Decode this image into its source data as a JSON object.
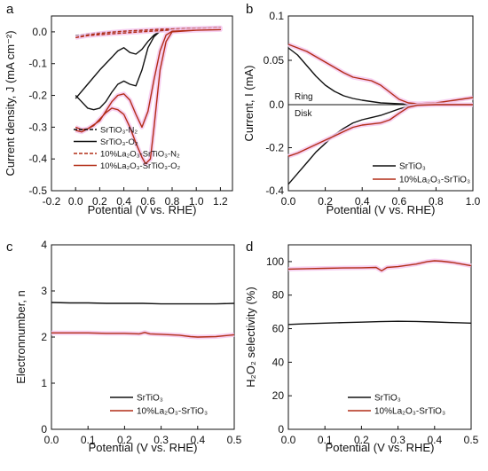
{
  "colors": {
    "black": "#111111",
    "red": "#b22d16",
    "glow": "#f6c8ee"
  },
  "chart_data": [
    {
      "id": "a",
      "panel_label": "a",
      "type": "line",
      "xlabel": "Potential (V vs. RHE)",
      "ylabel": "Current density, J (mA cm⁻²)",
      "xlim": [
        -0.2,
        1.3
      ],
      "ylim": [
        -0.5,
        0.05
      ],
      "xticks": [
        -0.2,
        0.0,
        0.2,
        0.4,
        0.6,
        0.8,
        1.0,
        1.2
      ],
      "yticks": [
        0.0,
        -0.1,
        -0.2,
        -0.3,
        -0.4,
        -0.5
      ],
      "xtick_labels": [
        "-0.2",
        "0.0",
        "0.2",
        "0.4",
        "0.6",
        "0.8",
        "1.0",
        "1.2"
      ],
      "ytick_labels": [
        "0.0",
        "-0.1",
        "-0.2",
        "-0.3",
        "-0.4",
        "-0.5"
      ],
      "legend_position": "bottom-left",
      "series": [
        {
          "name": "SrTiO₃-N₂",
          "color": "#111111",
          "dash": "4,2",
          "x": [
            0.0,
            0.1,
            0.2,
            0.3,
            0.4,
            0.5,
            0.6,
            0.7,
            0.8,
            0.9,
            1.0,
            1.1,
            1.2,
            1.1,
            0.9,
            0.7,
            0.5,
            0.3,
            0.1,
            0.0
          ],
          "y": [
            -0.012,
            -0.006,
            -0.002,
            0.001,
            0.003,
            0.005,
            0.007,
            0.009,
            0.01,
            0.011,
            0.012,
            0.013,
            0.014,
            0.012,
            0.009,
            0.005,
            0.0,
            -0.004,
            -0.009,
            -0.012
          ]
        },
        {
          "name": "SrTiO₃-O₂",
          "color": "#111111",
          "x": [
            0.0,
            0.05,
            0.1,
            0.15,
            0.2,
            0.25,
            0.3,
            0.35,
            0.4,
            0.45,
            0.5,
            0.55,
            0.6,
            0.65,
            0.7,
            0.8,
            1.0,
            1.2,
            1.0,
            0.8,
            0.7,
            0.65,
            0.6,
            0.55,
            0.5,
            0.45,
            0.4,
            0.35,
            0.3,
            0.2,
            0.1,
            0.0
          ],
          "y": [
            -0.2,
            -0.22,
            -0.24,
            -0.245,
            -0.24,
            -0.22,
            -0.19,
            -0.165,
            -0.155,
            -0.165,
            -0.17,
            -0.12,
            -0.05,
            -0.015,
            0.002,
            0.008,
            0.012,
            0.014,
            0.012,
            0.008,
            0.002,
            -0.01,
            -0.03,
            -0.055,
            -0.07,
            -0.065,
            -0.05,
            -0.06,
            -0.08,
            -0.12,
            -0.165,
            -0.21
          ]
        },
        {
          "name": "10%La₂O₃-SrTiO₃-N₂",
          "color": "#b22d16",
          "dash": "4,2",
          "x": [
            0.0,
            0.1,
            0.2,
            0.3,
            0.4,
            0.5,
            0.6,
            0.7,
            0.8,
            0.9,
            1.0,
            1.1,
            1.2,
            1.1,
            0.9,
            0.7,
            0.5,
            0.3,
            0.1,
            0.0
          ],
          "y": [
            -0.018,
            -0.01,
            -0.005,
            -0.001,
            0.002,
            0.004,
            0.006,
            0.008,
            0.009,
            0.01,
            0.011,
            0.012,
            0.013,
            0.011,
            0.008,
            0.004,
            -0.001,
            -0.006,
            -0.012,
            -0.018
          ]
        },
        {
          "name": "10%La₂O₃-SrTiO₃-O₂",
          "color": "#b22d16",
          "x": [
            0.0,
            0.05,
            0.1,
            0.15,
            0.2,
            0.25,
            0.3,
            0.35,
            0.4,
            0.45,
            0.5,
            0.55,
            0.58,
            0.62,
            0.65,
            0.7,
            0.75,
            0.8,
            1.0,
            1.2,
            1.0,
            0.8,
            0.75,
            0.7,
            0.65,
            0.6,
            0.55,
            0.5,
            0.45,
            0.4,
            0.35,
            0.3,
            0.25,
            0.2,
            0.1,
            0.05,
            0.0
          ],
          "y": [
            -0.3,
            -0.308,
            -0.305,
            -0.295,
            -0.275,
            -0.255,
            -0.24,
            -0.245,
            -0.26,
            -0.3,
            -0.35,
            -0.395,
            -0.415,
            -0.4,
            -0.3,
            -0.12,
            -0.03,
            0.0,
            0.005,
            0.007,
            0.005,
            0.002,
            -0.01,
            -0.06,
            -0.15,
            -0.25,
            -0.3,
            -0.26,
            -0.215,
            -0.195,
            -0.2,
            -0.22,
            -0.25,
            -0.28,
            -0.305,
            -0.315,
            -0.31
          ]
        }
      ]
    },
    {
      "id": "b",
      "panel_label": "b",
      "type": "line",
      "xlabel": "Potential (V vs. RHE)",
      "ylabel": "Current, I (mA)",
      "xlim": [
        0.0,
        1.0
      ],
      "ylim": [
        -0.4,
        0.1
      ],
      "xticks": [
        0.0,
        0.2,
        0.4,
        0.6,
        0.8,
        1.0
      ],
      "yticks": [
        0.1,
        0.05,
        0.0,
        -0.2,
        -0.4
      ],
      "xtick_labels": [
        "0.0",
        "0.2",
        "0.4",
        "0.6",
        "0.8",
        "1.0"
      ],
      "ytick_labels": [
        "0.1",
        "0.05",
        "0.0",
        "-0.2",
        "-0.4"
      ],
      "split_axis": {
        "top": [
          0.0,
          0.1
        ],
        "bottom": [
          -0.4,
          0.0
        ]
      },
      "region_labels": {
        "top": "Ring",
        "bottom": "Disk"
      },
      "legend_position": "bottom-right",
      "series": [
        {
          "name": "SrTiO₃",
          "color": "#111111",
          "part": "ring",
          "x": [
            0.0,
            0.05,
            0.1,
            0.15,
            0.2,
            0.25,
            0.3,
            0.35,
            0.4,
            0.5,
            0.6,
            0.7,
            0.8,
            0.9,
            1.0
          ],
          "y": [
            0.064,
            0.056,
            0.044,
            0.032,
            0.022,
            0.015,
            0.01,
            0.007,
            0.005,
            0.002,
            0.001,
            0.0,
            0.0,
            0.0,
            0.0
          ]
        },
        {
          "name": "10%La₂O₃-SrTiO₃",
          "color": "#b22d16",
          "part": "ring",
          "x": [
            0.0,
            0.05,
            0.1,
            0.15,
            0.2,
            0.25,
            0.3,
            0.35,
            0.4,
            0.45,
            0.5,
            0.55,
            0.6,
            0.65,
            0.7,
            0.8,
            0.9,
            1.0
          ],
          "y": [
            0.068,
            0.064,
            0.06,
            0.054,
            0.048,
            0.042,
            0.036,
            0.031,
            0.029,
            0.027,
            0.022,
            0.014,
            0.006,
            0.002,
            0.001,
            0.002,
            0.005,
            0.008
          ]
        },
        {
          "name": "SrTiO₃",
          "color": "#111111",
          "part": "disk",
          "x": [
            0.0,
            0.05,
            0.1,
            0.15,
            0.2,
            0.25,
            0.3,
            0.35,
            0.4,
            0.45,
            0.5,
            0.55,
            0.6,
            0.65,
            0.7,
            0.8,
            0.9,
            1.0
          ],
          "y": [
            -0.37,
            -0.32,
            -0.27,
            -0.22,
            -0.18,
            -0.14,
            -0.11,
            -0.085,
            -0.07,
            -0.06,
            -0.05,
            -0.035,
            -0.02,
            -0.008,
            -0.002,
            0.0,
            0.0,
            0.0
          ]
        },
        {
          "name": "10%La₂O₃-SrTiO₃",
          "color": "#b22d16",
          "part": "disk",
          "x": [
            0.0,
            0.05,
            0.1,
            0.15,
            0.2,
            0.25,
            0.3,
            0.35,
            0.4,
            0.45,
            0.5,
            0.55,
            0.6,
            0.65,
            0.7,
            0.8,
            0.9,
            1.0
          ],
          "y": [
            -0.24,
            -0.225,
            -0.205,
            -0.185,
            -0.165,
            -0.145,
            -0.125,
            -0.105,
            -0.095,
            -0.09,
            -0.085,
            -0.07,
            -0.04,
            -0.012,
            -0.003,
            0.0,
            0.0,
            0.0
          ]
        }
      ]
    },
    {
      "id": "c",
      "panel_label": "c",
      "type": "line",
      "xlabel": "Potential (V vs. RHE)",
      "ylabel": "Electronnumber, n",
      "xlim": [
        0.0,
        0.5
      ],
      "ylim": [
        0,
        4
      ],
      "xticks": [
        0.0,
        0.1,
        0.2,
        0.3,
        0.4,
        0.5
      ],
      "yticks": [
        0,
        1,
        2,
        3,
        4
      ],
      "xtick_labels": [
        "0.0",
        "0.1",
        "0.2",
        "0.3",
        "0.4",
        "0.5"
      ],
      "ytick_labels": [
        "0",
        "1",
        "2",
        "3",
        "4"
      ],
      "legend_position": "bottom-right",
      "series": [
        {
          "name": "SrTiO₃",
          "color": "#111111",
          "x": [
            0.0,
            0.05,
            0.1,
            0.15,
            0.2,
            0.25,
            0.3,
            0.35,
            0.4,
            0.45,
            0.5
          ],
          "y": [
            2.75,
            2.74,
            2.74,
            2.73,
            2.73,
            2.73,
            2.72,
            2.72,
            2.72,
            2.72,
            2.73
          ]
        },
        {
          "name": "10%La₂O₃-SrTiO₃",
          "color": "#b22d16",
          "x": [
            0.0,
            0.05,
            0.1,
            0.15,
            0.2,
            0.24,
            0.255,
            0.27,
            0.3,
            0.35,
            0.38,
            0.4,
            0.45,
            0.5
          ],
          "y": [
            2.09,
            2.09,
            2.09,
            2.08,
            2.08,
            2.07,
            2.1,
            2.07,
            2.06,
            2.04,
            2.01,
            2.0,
            2.01,
            2.05
          ]
        }
      ]
    },
    {
      "id": "d",
      "panel_label": "d",
      "type": "line",
      "xlabel": "Potential (V vs. RHE)",
      "ylabel": "H₂O₂ selectivity (%)",
      "xlim": [
        0.0,
        0.5
      ],
      "ylim": [
        0,
        110
      ],
      "xticks": [
        0.0,
        0.1,
        0.2,
        0.3,
        0.4,
        0.5
      ],
      "yticks": [
        0,
        20,
        40,
        60,
        80,
        100
      ],
      "xtick_labels": [
        "0.0",
        "0.1",
        "0.2",
        "0.3",
        "0.4",
        "0.5"
      ],
      "ytick_labels": [
        "0",
        "20",
        "40",
        "60",
        "80",
        "100"
      ],
      "legend_position": "bottom-right",
      "series": [
        {
          "name": "SrTiO₃",
          "color": "#111111",
          "x": [
            0.0,
            0.05,
            0.1,
            0.15,
            0.2,
            0.25,
            0.3,
            0.35,
            0.4,
            0.45,
            0.5
          ],
          "y": [
            62.5,
            63.0,
            63.3,
            63.6,
            63.9,
            64.2,
            64.4,
            64.3,
            64.0,
            63.6,
            63.3
          ]
        },
        {
          "name": "10%La₂O₃-SrTiO₃",
          "color": "#b22d16",
          "x": [
            0.0,
            0.05,
            0.1,
            0.15,
            0.2,
            0.24,
            0.255,
            0.27,
            0.3,
            0.35,
            0.38,
            0.4,
            0.42,
            0.45,
            0.5
          ],
          "y": [
            95.5,
            95.8,
            96.0,
            96.2,
            96.3,
            96.5,
            94.5,
            96.5,
            97.0,
            98.5,
            100.0,
            100.5,
            100.2,
            99.5,
            97.5
          ]
        }
      ]
    }
  ]
}
